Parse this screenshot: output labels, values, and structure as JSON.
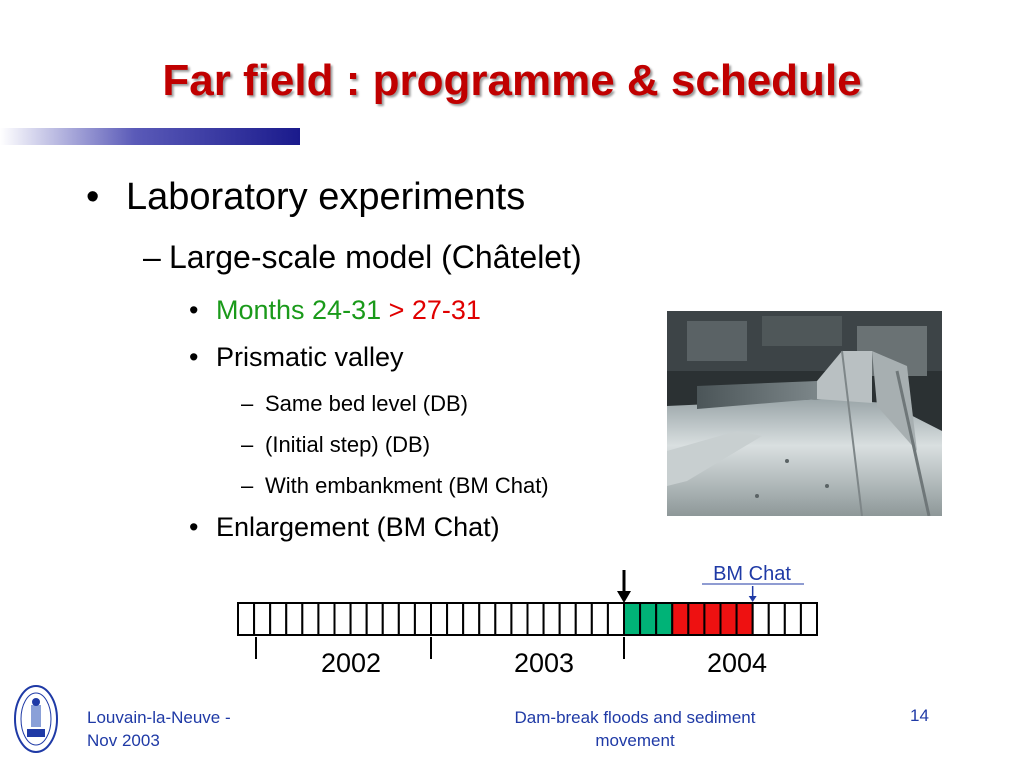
{
  "slide": {
    "title": "Far field : programme & schedule",
    "bullets": {
      "b1": "Laboratory experiments",
      "b1_1": "Large-scale model (Châtelet)",
      "b1_1_1_prefix": "Months 24-31 ",
      "b1_1_1_arrow": ">",
      "b1_1_1_suffix": " 27-31",
      "b1_1_2": "Prismatic valley",
      "b1_1_2_a": "Same bed level (DB)",
      "b1_1_2_b": "(Initial step) (DB)",
      "b1_1_2_c": "With embankment (BM Chat)",
      "b1_1_3": "Enlargement (BM Chat)"
    },
    "markers": {
      "dot": "•",
      "dash": "–"
    }
  },
  "timeline": {
    "total_months": 36,
    "years": [
      "2002",
      "2003",
      "2004"
    ],
    "annotation": "BM Chat",
    "green_months": [
      24,
      25,
      26
    ],
    "red_months": [
      27,
      28,
      29,
      30,
      31
    ],
    "arrow_month_boundary": 24,
    "bm_chat_month_boundary": 32,
    "colors": {
      "green": "#00b377",
      "red": "#ee1111",
      "annotation": "#1f3aa6"
    }
  },
  "footer": {
    "left_line1": "Louvain-la-Neuve -",
    "left_line2": "Nov 2003",
    "center_line1": "Dam-break floods and sediment",
    "center_line2": "movement",
    "page": "14"
  },
  "theme": {
    "title_color": "#c00000",
    "accent_bar": "#1a1a8c",
    "subbullet_green": "#1a9a1a",
    "subbullet_red": "#e00000",
    "footer_color": "#1f3aa6"
  }
}
